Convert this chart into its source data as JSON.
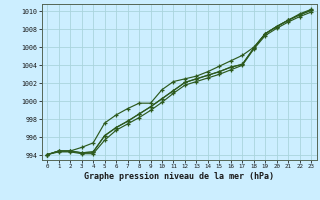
{
  "title": "Graphe pression niveau de la mer (hPa)",
  "xlim": [
    -0.5,
    23.5
  ],
  "ylim": [
    993.5,
    1010.8
  ],
  "xticks": [
    0,
    1,
    2,
    3,
    4,
    5,
    6,
    7,
    8,
    9,
    10,
    11,
    12,
    13,
    14,
    15,
    16,
    17,
    18,
    19,
    20,
    21,
    22,
    23
  ],
  "yticks": [
    994,
    996,
    998,
    1000,
    1002,
    1004,
    1006,
    1008,
    1010
  ],
  "bg_color": "#cceeff",
  "grid_color": "#aad4dd",
  "line_color": "#2d5a1e",
  "series": [
    [
      994.1,
      994.5,
      994.5,
      994.3,
      994.4,
      996.2,
      997.1,
      997.8,
      998.6,
      999.4,
      1000.3,
      1001.2,
      1002.1,
      1002.5,
      1002.9,
      1003.3,
      1003.8,
      1004.1,
      1005.9,
      1007.5,
      1008.3,
      1009.0,
      1009.6,
      1010.1
    ],
    [
      994.1,
      994.5,
      994.5,
      994.9,
      995.4,
      997.6,
      998.5,
      999.2,
      999.8,
      999.8,
      1001.3,
      1002.2,
      1002.5,
      1002.8,
      1003.3,
      1003.9,
      1004.5,
      1005.1,
      1006.0,
      1007.5,
      1008.3,
      1009.0,
      1009.7,
      1010.2
    ],
    [
      994.1,
      994.5,
      994.5,
      994.3,
      994.4,
      996.2,
      997.1,
      997.8,
      998.6,
      999.4,
      1000.3,
      1001.2,
      1002.1,
      1002.5,
      1002.9,
      1003.3,
      1003.8,
      1004.1,
      1005.9,
      1007.5,
      1008.3,
      1009.0,
      1009.6,
      1010.1
    ],
    [
      994.1,
      994.4,
      994.4,
      994.2,
      994.2,
      995.7,
      996.8,
      997.5,
      998.2,
      999.0,
      999.9,
      1000.9,
      1001.8,
      1002.2,
      1002.6,
      1003.0,
      1003.5,
      1004.0,
      1005.8,
      1007.3,
      1008.1,
      1008.8,
      1009.4,
      1009.9
    ]
  ]
}
